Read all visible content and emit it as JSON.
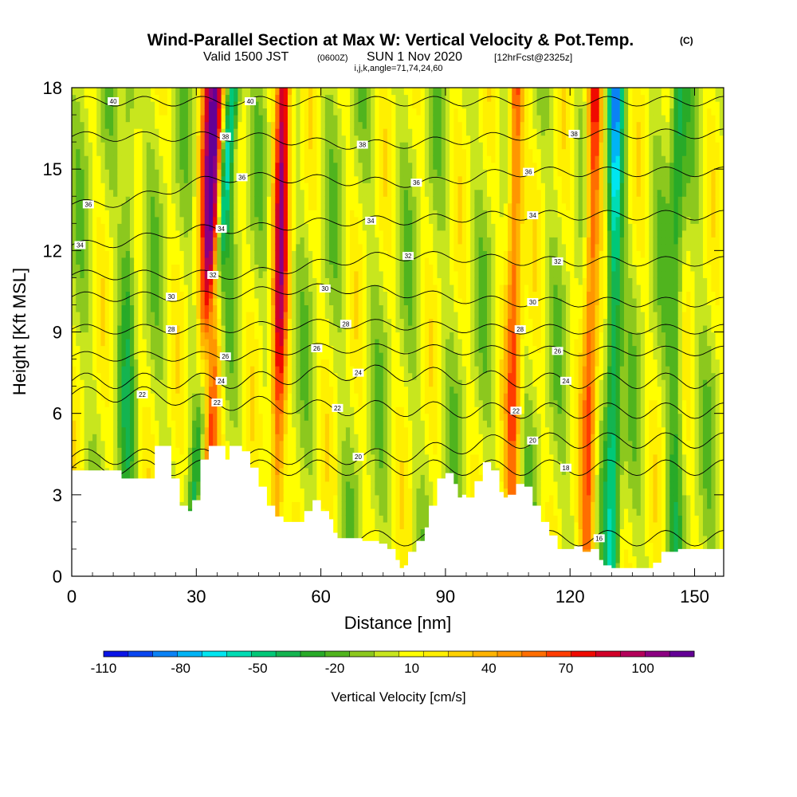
{
  "title": {
    "main": "Wind-Parallel Section at Max W: Vertical Velocity & Pot.Temp.",
    "copyright": "(C)",
    "valid_prefix": "Valid 1500 JST",
    "valid_utc": "(0600Z)",
    "valid_date": "SUN 1 Nov 2020",
    "forecast_info": "[12hrFcst@2325z]",
    "indices": "i,j,k,angle=71,74,24,60"
  },
  "chart_data": {
    "type": "heatmap",
    "xlabel": "Distance [nm]",
    "ylabel": "Height [Kft MSL]",
    "xlim": [
      0,
      157
    ],
    "ylim": [
      0,
      18
    ],
    "x_ticks": [
      0,
      30,
      60,
      90,
      120,
      150
    ],
    "y_ticks": [
      0,
      3,
      6,
      9,
      12,
      15,
      18
    ],
    "fill_variable": "Vertical Velocity [cm/s]",
    "colorbar": {
      "title": "Vertical Velocity [cm/s]",
      "labels": [
        -110,
        -80,
        -50,
        -20,
        10,
        40,
        70,
        100
      ],
      "levels": [
        -110,
        -100,
        -90,
        -80,
        -70,
        -60,
        -50,
        -40,
        -30,
        -20,
        -10,
        0,
        10,
        20,
        30,
        40,
        50,
        60,
        70,
        80,
        90,
        100,
        110,
        120
      ],
      "colors": [
        "#0a14e6",
        "#0a46f0",
        "#0a82f5",
        "#00b4f5",
        "#00e6f0",
        "#00dcb4",
        "#00c878",
        "#14b450",
        "#28aa28",
        "#50b41e",
        "#8cc81e",
        "#c8e61e",
        "#ffff00",
        "#fff000",
        "#ffd200",
        "#ffb400",
        "#ff9600",
        "#ff6e00",
        "#ff3c00",
        "#f00a00",
        "#d20028",
        "#b4005a",
        "#8c0082",
        "#640096"
      ]
    },
    "terrain_kft": [
      [
        0,
        3.9
      ],
      [
        10,
        3.9
      ],
      [
        12,
        3.6
      ],
      [
        18,
        3.6
      ],
      [
        20,
        4.8
      ],
      [
        22,
        4.8
      ],
      [
        24,
        3.6
      ],
      [
        26,
        2.6
      ],
      [
        28,
        2.4
      ],
      [
        29,
        2.8
      ],
      [
        31,
        4.3
      ],
      [
        33,
        4.8
      ],
      [
        35,
        4.8
      ],
      [
        37,
        4.3
      ],
      [
        38,
        4.8
      ],
      [
        41,
        4.6
      ],
      [
        43,
        4.0
      ],
      [
        45,
        3.3
      ],
      [
        47,
        2.6
      ],
      [
        49,
        2.2
      ],
      [
        51,
        2.0
      ],
      [
        53,
        2.0
      ],
      [
        56,
        2.4
      ],
      [
        58,
        2.8
      ],
      [
        60,
        2.4
      ],
      [
        62,
        2.1
      ],
      [
        63,
        1.6
      ],
      [
        64,
        1.4
      ],
      [
        66,
        1.4
      ],
      [
        68,
        1.4
      ],
      [
        70,
        1.3
      ],
      [
        72,
        1.3
      ],
      [
        74,
        1.2
      ],
      [
        76,
        1.0
      ],
      [
        78,
        0.6
      ],
      [
        79,
        0.3
      ],
      [
        80,
        0.4
      ],
      [
        81,
        0.9
      ],
      [
        83,
        1.3
      ],
      [
        85,
        1.8
      ],
      [
        86,
        2.6
      ],
      [
        88,
        3.6
      ],
      [
        90,
        3.8
      ],
      [
        92,
        3.4
      ],
      [
        93,
        2.9
      ],
      [
        94,
        3.0
      ],
      [
        95,
        2.9
      ],
      [
        97,
        3.5
      ],
      [
        99,
        4.2
      ],
      [
        101,
        3.9
      ],
      [
        103,
        3.1
      ],
      [
        104,
        2.9
      ],
      [
        105,
        3.0
      ],
      [
        107,
        3.4
      ],
      [
        109,
        3.3
      ],
      [
        111,
        2.6
      ],
      [
        113,
        2.0
      ],
      [
        115,
        1.5
      ],
      [
        117,
        1.0
      ],
      [
        119,
        1.0
      ],
      [
        121,
        1.1
      ],
      [
        123,
        0.9
      ],
      [
        125,
        1.0
      ],
      [
        127,
        0.6
      ],
      [
        128,
        0.4
      ],
      [
        130,
        0.3
      ],
      [
        132,
        0.3
      ],
      [
        134,
        0.3
      ],
      [
        136,
        0.3
      ],
      [
        138,
        0.3
      ],
      [
        140,
        0.5
      ],
      [
        142,
        0.9
      ],
      [
        146,
        1.0
      ],
      [
        157,
        1.0
      ]
    ],
    "updraft_columns": [
      {
        "x_top": 35,
        "x_bottom": 33,
        "peak_cm_s": 95
      },
      {
        "x_top": 51,
        "x_bottom": 49,
        "peak_cm_s": 100
      },
      {
        "x_top": 107,
        "x_bottom": 106,
        "peak_cm_s": 75
      },
      {
        "x_top": 126,
        "x_bottom": 124,
        "peak_cm_s": 80
      },
      {
        "x_top": 33,
        "x_bottom": 31,
        "peak_cm_s": 70
      }
    ],
    "downdraft_columns": [
      {
        "x_top": 39,
        "x_bottom": 28,
        "min_cm_s": -75
      },
      {
        "x_top": 131,
        "x_bottom": 130,
        "min_cm_s": -80
      },
      {
        "x_top": 14,
        "x_bottom": 13,
        "min_cm_s": -30
      },
      {
        "x_top": 146,
        "x_bottom": 145,
        "min_cm_s": -40
      }
    ],
    "contour_variable": "Potential Temperature",
    "contour_labels": [
      {
        "text": "40",
        "x": 10,
        "y": 17.5
      },
      {
        "text": "40",
        "x": 43,
        "y": 17.5
      },
      {
        "text": "38",
        "x": 37,
        "y": 16.2
      },
      {
        "text": "38",
        "x": 70,
        "y": 15.9
      },
      {
        "text": "38",
        "x": 121,
        "y": 16.3
      },
      {
        "text": "36",
        "x": 4,
        "y": 13.7
      },
      {
        "text": "36",
        "x": 41,
        "y": 14.7
      },
      {
        "text": "36",
        "x": 83,
        "y": 14.5
      },
      {
        "text": "36",
        "x": 110,
        "y": 14.9
      },
      {
        "text": "34",
        "x": 2,
        "y": 12.2
      },
      {
        "text": "34",
        "x": 36,
        "y": 12.8
      },
      {
        "text": "34",
        "x": 72,
        "y": 13.1
      },
      {
        "text": "34",
        "x": 111,
        "y": 13.3
      },
      {
        "text": "32",
        "x": 34,
        "y": 11.1
      },
      {
        "text": "32",
        "x": 81,
        "y": 11.8
      },
      {
        "text": "32",
        "x": 117,
        "y": 11.6
      },
      {
        "text": "30",
        "x": 24,
        "y": 10.3
      },
      {
        "text": "30",
        "x": 61,
        "y": 10.6
      },
      {
        "text": "30",
        "x": 111,
        "y": 10.1
      },
      {
        "text": "28",
        "x": 24,
        "y": 9.1
      },
      {
        "text": "28",
        "x": 66,
        "y": 9.3
      },
      {
        "text": "28",
        "x": 108,
        "y": 9.1
      },
      {
        "text": "26",
        "x": 37,
        "y": 8.1
      },
      {
        "text": "26",
        "x": 59,
        "y": 8.4
      },
      {
        "text": "26",
        "x": 117,
        "y": 8.3
      },
      {
        "text": "24",
        "x": 36,
        "y": 7.2
      },
      {
        "text": "24",
        "x": 69,
        "y": 7.5
      },
      {
        "text": "24",
        "x": 119,
        "y": 7.2
      },
      {
        "text": "22",
        "x": 17,
        "y": 6.7
      },
      {
        "text": "22",
        "x": 35,
        "y": 6.4
      },
      {
        "text": "22",
        "x": 64,
        "y": 6.2
      },
      {
        "text": "22",
        "x": 107,
        "y": 6.1
      },
      {
        "text": "20",
        "x": 69,
        "y": 4.4
      },
      {
        "text": "20",
        "x": 111,
        "y": 5.0
      },
      {
        "text": "18",
        "x": 119,
        "y": 4.0
      },
      {
        "text": "16",
        "x": 127,
        "y": 1.4
      }
    ]
  }
}
